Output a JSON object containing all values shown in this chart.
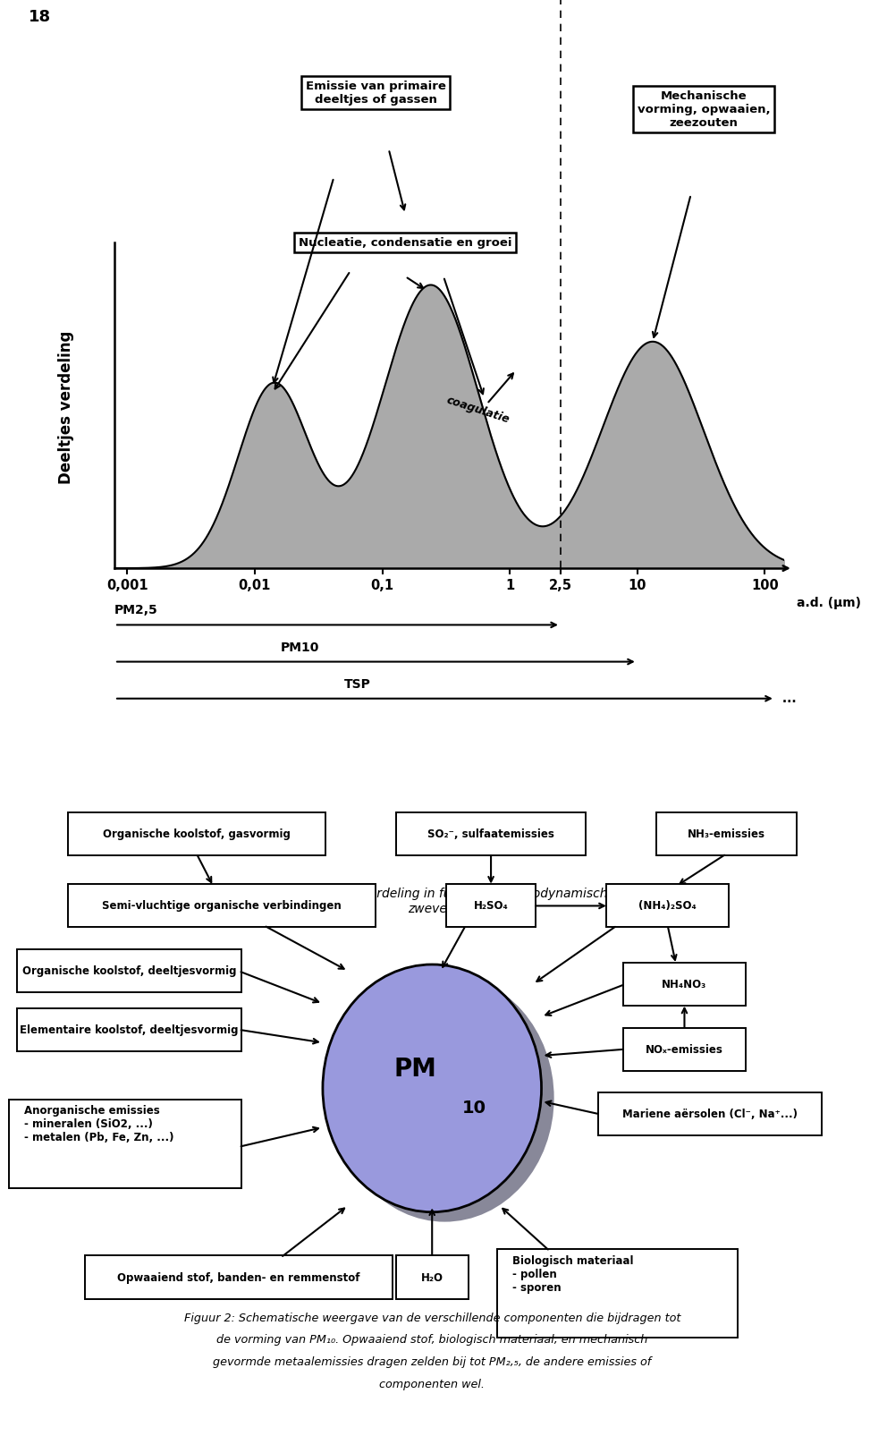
{
  "page_num": "18",
  "fig1_caption": "Figuur 1: Typische deeltjesverdeling in functie van aërodynamische diameter van\nzwevend stof",
  "fig2_caption_line1": "Figuur 2: Schematische weergave van de verschillende componenten die bijdragen tot",
  "fig2_caption_line2": "de vorming van PM",
  "fig2_caption_sub1": "10",
  "fig2_caption_line3": ". Opwaaiend stof, biologisch materiaal, en mechanisch",
  "fig2_caption_line4": "gevormde metaalemissies dragen zelden bij tot PM",
  "fig2_caption_sub2": "2,5",
  "fig2_caption_line5": ", de andere emissies of",
  "fig2_caption_line6": "componenten wel.",
  "ylabel": "Deeltjes verdeling",
  "xlabel_text": "a.d. (μm)",
  "box1_text": "Emissie van primaire\ndeeltjes of gassen",
  "box2_text": "Nucleatie, condensatie en groei",
  "box3_text": "Mechanische\nvorming, opwaaien,\nzeezouten",
  "coagulatie_text": "coagulatie",
  "pm25_label": "PM2,5",
  "pm10_label": "PM10",
  "tsp_label": "TSP",
  "x_ticks": [
    "0,001",
    "0,01",
    "0,1",
    "1",
    "2,5",
    "10",
    "100"
  ],
  "x_positions": [
    -3,
    -2,
    -1,
    0,
    0.398,
    1,
    2
  ],
  "dashed_line_x": 0.398,
  "fill_color": "#aaaaaa",
  "ellipse_fill": "#9999dd",
  "ellipse_shadow": "#888899",
  "box_facecolor": "#ffffff",
  "box_edgecolor": "#000000"
}
